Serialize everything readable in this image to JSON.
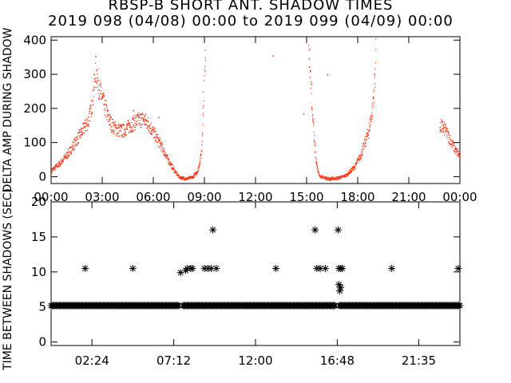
{
  "header": {
    "title": "RBSP-B SHORT ANT. SHADOW TIMES",
    "subtitle": "2019 098 (04/08) 00:00 to 2019 099 (04/09) 00:00"
  },
  "colors": {
    "points": "#ff2200",
    "axes": "#000000",
    "background": "#ffffff"
  },
  "chart_data": [
    {
      "type": "scatter",
      "ylabel": "DELTA AMP DURING SHADOW",
      "xlabel": "",
      "xlim": [
        0,
        24
      ],
      "ylim": [
        -20,
        410
      ],
      "x_tick_labels": [
        "00:00",
        "03:00",
        "06:00",
        "09:00",
        "12:00",
        "15:00",
        "18:00",
        "21:00",
        "00:00"
      ],
      "x_tick_values": [
        0,
        3,
        6,
        9,
        12,
        15,
        18,
        21,
        24
      ],
      "y_tick_labels": [
        "0",
        "100",
        "200",
        "300",
        "400"
      ],
      "y_tick_values": [
        0,
        100,
        200,
        300,
        400
      ],
      "x_unit": "hours",
      "trend_points": [
        [
          0.0,
          20
        ],
        [
          0.5,
          40
        ],
        [
          1.0,
          70
        ],
        [
          1.5,
          110
        ],
        [
          2.0,
          150
        ],
        [
          2.2,
          170
        ],
        [
          2.4,
          220
        ],
        [
          2.6,
          320
        ],
        [
          2.8,
          260
        ],
        [
          3.1,
          210
        ],
        [
          3.3,
          180
        ],
        [
          3.5,
          155
        ],
        [
          3.8,
          140
        ],
        [
          4.2,
          135
        ],
        [
          4.6,
          150
        ],
        [
          5.0,
          165
        ],
        [
          5.4,
          170
        ],
        [
          5.7,
          155
        ],
        [
          6.0,
          130
        ],
        [
          6.4,
          95
        ],
        [
          6.8,
          55
        ],
        [
          7.2,
          20
        ],
        [
          7.5,
          0
        ],
        [
          7.9,
          -5
        ],
        [
          8.3,
          0
        ],
        [
          8.6,
          20
        ],
        [
          8.8,
          70
        ],
        [
          8.95,
          250
        ],
        [
          9.05,
          400
        ],
        [
          15.1,
          400
        ],
        [
          15.3,
          200
        ],
        [
          15.5,
          60
        ],
        [
          15.7,
          5
        ],
        [
          15.9,
          0
        ],
        [
          16.3,
          -5
        ],
        [
          16.8,
          -3
        ],
        [
          17.3,
          5
        ],
        [
          17.8,
          30
        ],
        [
          18.2,
          70
        ],
        [
          18.6,
          130
        ],
        [
          18.85,
          200
        ],
        [
          19.0,
          300
        ],
        [
          19.05,
          400
        ],
        [
          22.8,
          150
        ],
        [
          23.1,
          140
        ],
        [
          23.4,
          110
        ],
        [
          23.7,
          80
        ],
        [
          24.0,
          60
        ]
      ],
      "scattered_outliers": [
        [
          4.8,
          195
        ],
        [
          6.3,
          175
        ],
        [
          13.0,
          355
        ],
        [
          14.8,
          185
        ],
        [
          16.2,
          300
        ]
      ]
    },
    {
      "type": "scatter",
      "ylabel": "TIME BETWEEN SHADOWS (SEC)",
      "xlabel": "",
      "xlim": [
        0,
        24
      ],
      "ylim": [
        -0.5,
        20
      ],
      "x_tick_labels": [
        "02:24",
        "07:12",
        "12:00",
        "16:48",
        "21:35"
      ],
      "x_tick_values": [
        2.4,
        7.2,
        12.0,
        16.8,
        21.583
      ],
      "y_tick_labels": [
        "0",
        "5",
        "10",
        "15",
        "20"
      ],
      "y_tick_values": [
        0,
        5,
        10,
        15,
        20
      ],
      "x_unit": "hours",
      "baseline_value": 5.2,
      "points": [
        [
          2.0,
          10.5
        ],
        [
          4.8,
          10.5
        ],
        [
          7.6,
          9.9
        ],
        [
          7.9,
          10.2
        ],
        [
          8.0,
          10.5
        ],
        [
          8.2,
          10.5
        ],
        [
          8.3,
          10.5
        ],
        [
          9.0,
          10.5
        ],
        [
          9.2,
          10.5
        ],
        [
          9.4,
          10.5
        ],
        [
          9.5,
          16.0
        ],
        [
          9.7,
          10.5
        ],
        [
          13.2,
          10.5
        ],
        [
          15.5,
          16.0
        ],
        [
          15.6,
          10.5
        ],
        [
          15.8,
          10.5
        ],
        [
          16.1,
          10.5
        ],
        [
          16.85,
          16.0
        ],
        [
          16.9,
          10.5
        ],
        [
          17.0,
          10.5
        ],
        [
          17.1,
          10.5
        ],
        [
          16.9,
          8.2
        ],
        [
          17.0,
          7.8
        ],
        [
          16.95,
          7.3
        ],
        [
          20.0,
          10.5
        ],
        [
          23.9,
          10.5
        ]
      ],
      "baseline_gaps": [
        [
          7.5,
          7.7
        ],
        [
          16.7,
          16.9
        ]
      ]
    }
  ]
}
